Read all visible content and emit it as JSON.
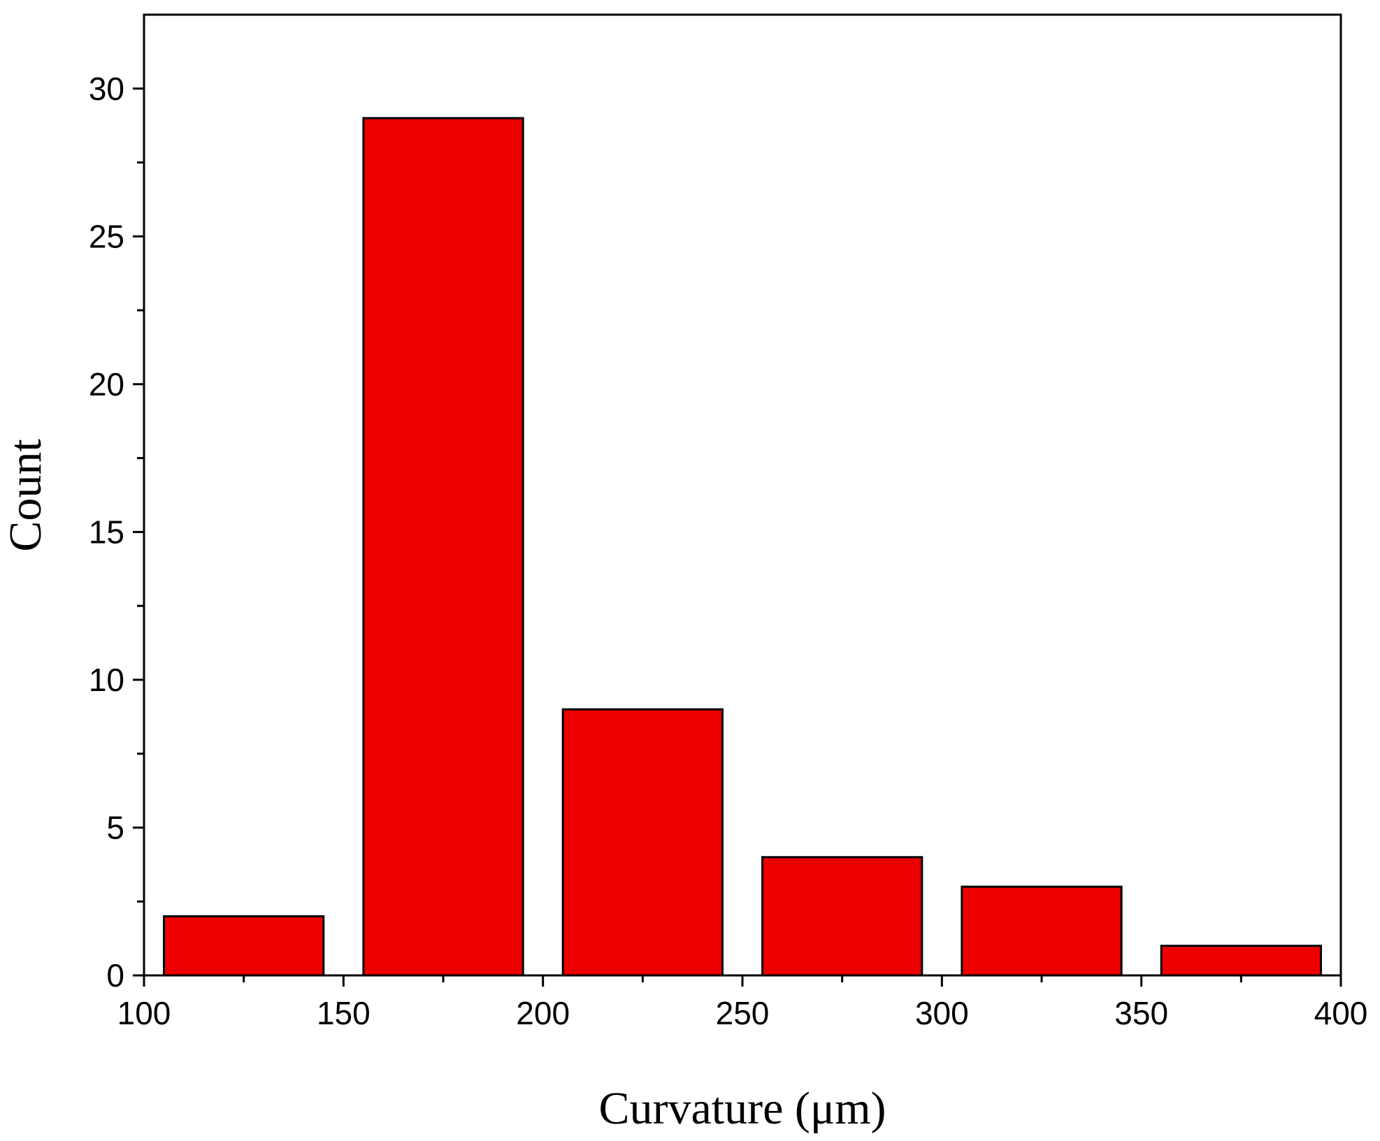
{
  "chart_data": {
    "type": "bar",
    "x_label": "Curvature (μm)",
    "y_label": "Count",
    "x": [
      125,
      175,
      225,
      275,
      325,
      375
    ],
    "values": [
      2,
      29,
      9,
      4,
      3,
      1
    ],
    "color": "#ee0000",
    "xlim": [
      100,
      400
    ],
    "xticks": [
      100,
      150,
      200,
      250,
      300,
      350,
      400
    ],
    "ylim": [
      0,
      32.5
    ],
    "yticks": [
      0,
      5,
      10,
      15,
      20,
      25,
      30
    ]
  }
}
